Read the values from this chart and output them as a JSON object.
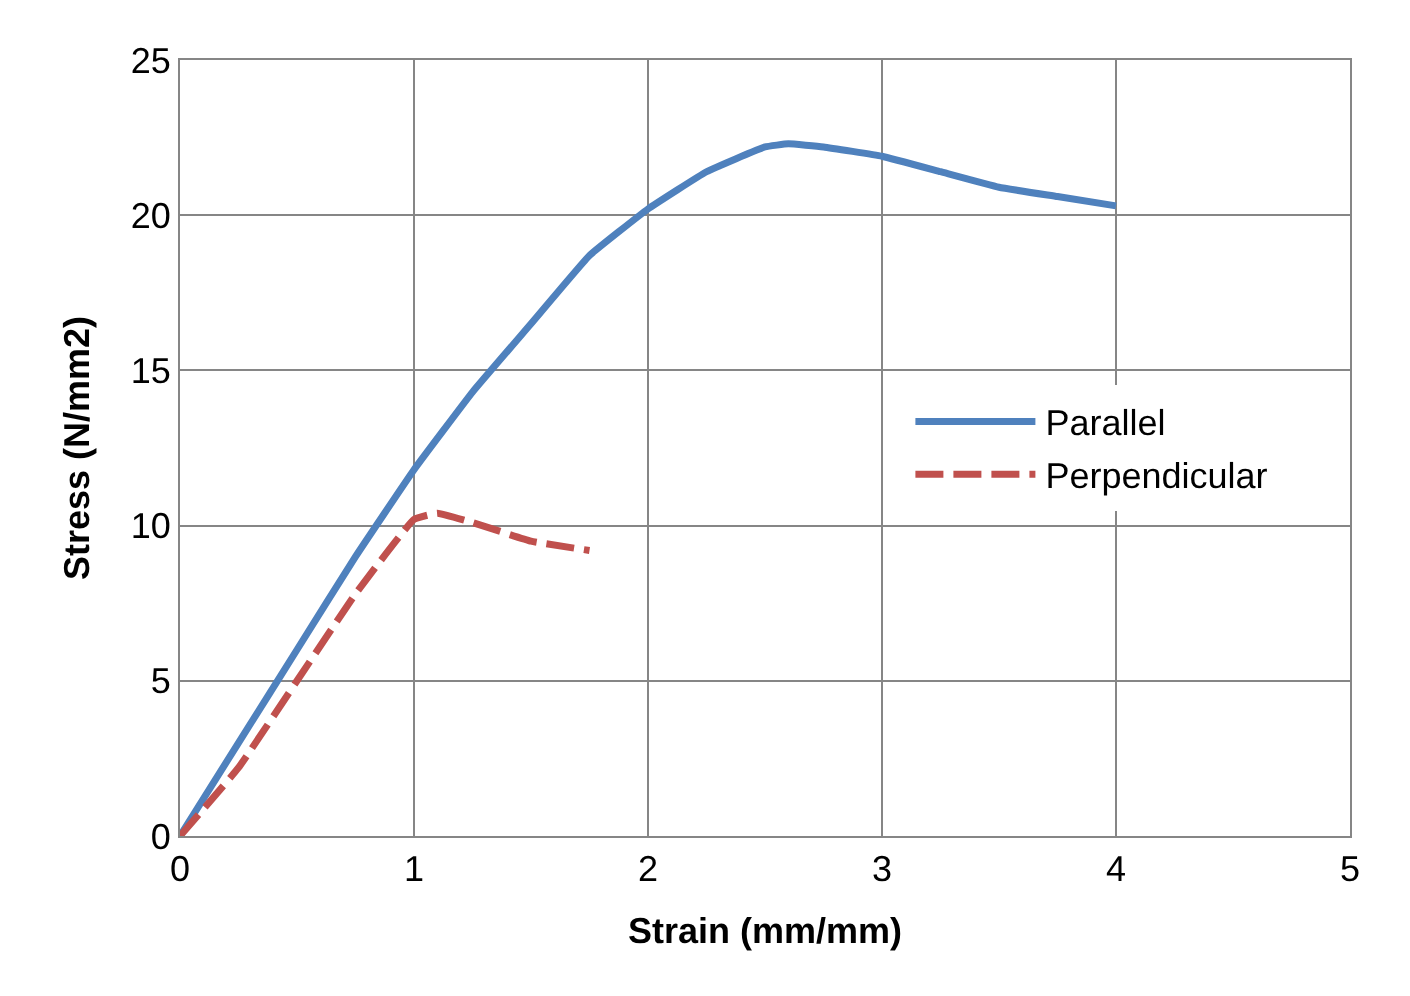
{
  "chart_data": {
    "type": "line",
    "xlabel": "Strain (mm/mm)",
    "ylabel": "Stress (N/mm2)",
    "xlim": [
      0,
      5
    ],
    "xticks": [
      0,
      1,
      2,
      3,
      4,
      5
    ],
    "ylim": [
      0,
      25
    ],
    "yticks": [
      0,
      5,
      10,
      15,
      20,
      25
    ],
    "grid": true,
    "legend": "right",
    "marker": "none",
    "series": [
      {
        "name": "Parallel",
        "color": "#4f81bd",
        "line_style": "solid",
        "x": [
          0,
          0.25,
          0.5,
          0.75,
          1,
          1.25,
          1.5,
          1.75,
          2,
          2.25,
          2.5,
          2.6,
          2.75,
          3,
          3.25,
          3.5,
          3.75,
          4
        ],
        "values": [
          0,
          3,
          6,
          9,
          11.8,
          14.3,
          16.5,
          18.7,
          20.2,
          21.4,
          22.2,
          22.3,
          22.2,
          21.9,
          21.4,
          20.9,
          20.6,
          20.3
        ]
      },
      {
        "name": "Perpendicular",
        "color": "#c0504d",
        "line_style": "dashed",
        "x": [
          0,
          0.25,
          0.5,
          0.75,
          1,
          1.1,
          1.25,
          1.5,
          1.75
        ],
        "values": [
          0,
          2.2,
          5,
          7.8,
          10.2,
          10.4,
          10.1,
          9.5,
          9.2
        ]
      }
    ]
  }
}
